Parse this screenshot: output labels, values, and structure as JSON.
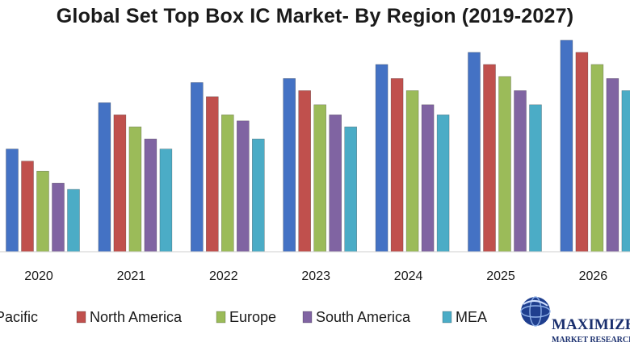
{
  "chart_data": {
    "type": "bar",
    "title": "Global Set Top Box IC Market- By Region (2019-2027)",
    "categories": [
      "2020",
      "2021",
      "2022",
      "2023",
      "2024",
      "2025",
      "2026"
    ],
    "series": [
      {
        "name": "Asia Pacific",
        "values": [
          5.1,
          7.4,
          8.4,
          8.6,
          9.3,
          9.9,
          10.5
        ]
      },
      {
        "name": "North America",
        "values": [
          4.5,
          6.8,
          7.7,
          8.0,
          8.6,
          9.3,
          9.9
        ]
      },
      {
        "name": "Europe",
        "values": [
          4.0,
          6.2,
          6.8,
          7.3,
          8.0,
          8.7,
          9.3
        ]
      },
      {
        "name": "South America",
        "values": [
          3.4,
          5.6,
          6.5,
          6.8,
          7.3,
          8.0,
          8.6
        ]
      },
      {
        "name": "MEA",
        "values": [
          3.1,
          5.1,
          5.6,
          6.2,
          6.8,
          7.3,
          8.0
        ]
      }
    ],
    "colors": [
      "#4472c4",
      "#c0504d",
      "#9bbb59",
      "#8064a2",
      "#4bacc6"
    ],
    "ylim": [
      0,
      12.5
    ],
    "xlabel": "",
    "ylabel": "",
    "grid": false,
    "legend": "bottom"
  },
  "logo": {
    "name": "MAXIMIZE",
    "tagline": "MARKET RESEARCH"
  }
}
